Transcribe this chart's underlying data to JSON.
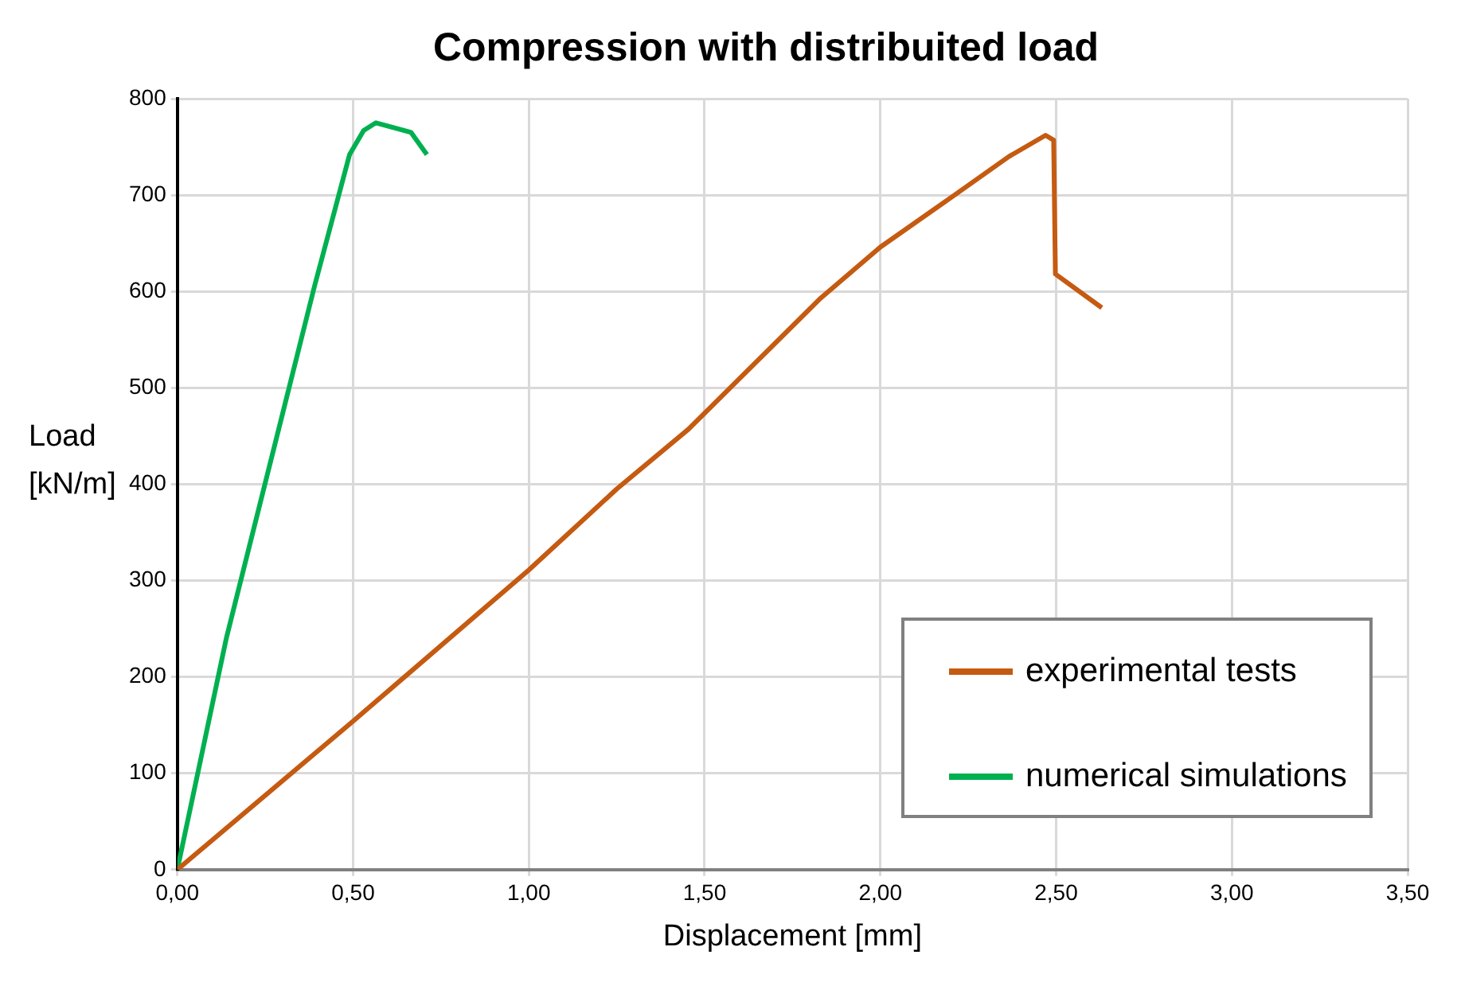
{
  "chart_data": {
    "type": "line",
    "title": "Compression with distribuited load",
    "xlabel": "Displacement [mm]",
    "ylabel": "Load [kN/m]",
    "xlim": [
      0,
      3.5
    ],
    "xticks": [
      {
        "value": 0,
        "label": "0,00"
      },
      {
        "value": 0.5,
        "label": "0,50"
      },
      {
        "value": 1,
        "label": "1,00"
      },
      {
        "value": 1.5,
        "label": "1,50"
      },
      {
        "value": 2,
        "label": "2,00"
      },
      {
        "value": 2.5,
        "label": "2,50"
      },
      {
        "value": 3,
        "label": "3,00"
      },
      {
        "value": 3.5,
        "label": "3,50"
      }
    ],
    "ylim": [
      0,
      800
    ],
    "yticks": [
      0,
      100,
      200,
      300,
      400,
      500,
      600,
      700,
      800
    ],
    "grid": true,
    "legend": "bottom right",
    "marker": "none",
    "line_style": "solid",
    "series": [
      {
        "name": "experimental tests",
        "color": "#c55a11",
        "x": [
          0,
          0.5,
          1.0,
          1.25,
          1.454,
          1.83,
          2.0,
          2.215,
          2.366,
          2.47,
          2.493,
          2.498,
          2.63
        ],
        "values": [
          0,
          154,
          311,
          395,
          457,
          593,
          646,
          701,
          740,
          762,
          757,
          618,
          583
        ]
      },
      {
        "name": "numerical simulations",
        "color": "#00b050",
        "x": [
          0,
          0.14,
          0.39,
          0.49,
          0.53,
          0.565,
          0.665,
          0.71
        ],
        "values": [
          0,
          241,
          605,
          742,
          767,
          775,
          765,
          742
        ]
      }
    ]
  }
}
